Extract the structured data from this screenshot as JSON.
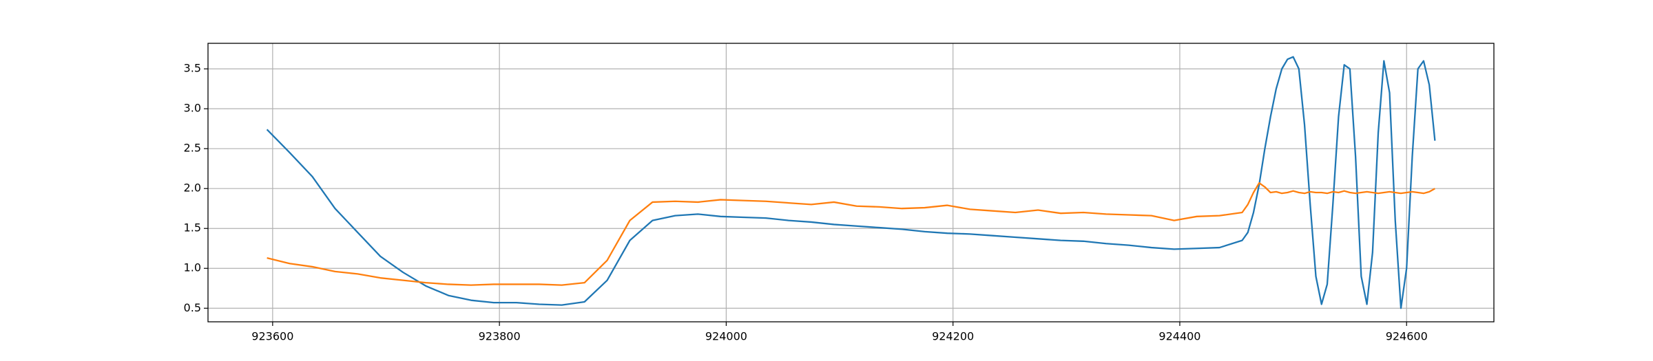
{
  "chart_data": {
    "type": "line",
    "x": [
      923595,
      923615,
      923635,
      923655,
      923675,
      923695,
      923715,
      923735,
      923755,
      923775,
      923795,
      923815,
      923835,
      923855,
      923875,
      923895,
      923915,
      923935,
      923955,
      923975,
      923995,
      924015,
      924035,
      924055,
      924075,
      924095,
      924115,
      924135,
      924155,
      924175,
      924195,
      924215,
      924235,
      924255,
      924275,
      924295,
      924315,
      924335,
      924355,
      924375,
      924395,
      924415,
      924435,
      924455,
      924460,
      924465,
      924470,
      924475,
      924480,
      924485,
      924490,
      924495,
      924500,
      924505,
      924510,
      924515,
      924520,
      924525,
      924530,
      924535,
      924540,
      924545,
      924550,
      924555,
      924560,
      924565,
      924570,
      924575,
      924580,
      924585,
      924590,
      924595,
      924600,
      924605,
      924610,
      924615,
      924620,
      924625
    ],
    "series": [
      {
        "color": "#1f77b4",
        "values": [
          2.74,
          2.45,
          2.15,
          1.75,
          1.45,
          1.15,
          0.95,
          0.78,
          0.66,
          0.6,
          0.57,
          0.57,
          0.55,
          0.54,
          0.58,
          0.85,
          1.35,
          1.6,
          1.66,
          1.68,
          1.65,
          1.64,
          1.63,
          1.6,
          1.58,
          1.55,
          1.53,
          1.51,
          1.49,
          1.46,
          1.44,
          1.43,
          1.41,
          1.39,
          1.37,
          1.35,
          1.34,
          1.31,
          1.29,
          1.26,
          1.24,
          1.25,
          1.26,
          1.35,
          1.45,
          1.7,
          2.05,
          2.5,
          2.9,
          3.25,
          3.5,
          3.62,
          3.65,
          3.5,
          2.8,
          1.8,
          0.9,
          0.55,
          0.8,
          1.8,
          2.9,
          3.55,
          3.5,
          2.4,
          0.9,
          0.55,
          1.2,
          2.7,
          3.6,
          3.2,
          1.6,
          0.5,
          1.0,
          2.4,
          3.5,
          3.6,
          3.3,
          2.6
        ]
      },
      {
        "color": "#ff7f0e",
        "values": [
          1.13,
          1.06,
          1.02,
          0.96,
          0.93,
          0.88,
          0.85,
          0.82,
          0.8,
          0.79,
          0.8,
          0.8,
          0.8,
          0.79,
          0.82,
          1.1,
          1.6,
          1.83,
          1.84,
          1.83,
          1.86,
          1.85,
          1.84,
          1.82,
          1.8,
          1.83,
          1.78,
          1.77,
          1.75,
          1.76,
          1.79,
          1.74,
          1.72,
          1.7,
          1.73,
          1.69,
          1.7,
          1.68,
          1.67,
          1.66,
          1.6,
          1.65,
          1.66,
          1.7,
          1.8,
          1.95,
          2.07,
          2.02,
          1.95,
          1.96,
          1.94,
          1.95,
          1.97,
          1.95,
          1.94,
          1.96,
          1.95,
          1.95,
          1.94,
          1.96,
          1.95,
          1.97,
          1.95,
          1.94,
          1.95,
          1.96,
          1.95,
          1.94,
          1.95,
          1.96,
          1.95,
          1.94,
          1.95,
          1.96,
          1.95,
          1.94,
          1.96,
          2.0
        ]
      }
    ],
    "xlim": [
      923543,
      924677
    ],
    "ylim": [
      0.33,
      3.82
    ],
    "xticks": [
      923600,
      923800,
      924000,
      924200,
      924400,
      924600
    ],
    "yticks": [
      0.5,
      {
        "value": 1.0,
        "label": "1.0"
      },
      1.5,
      {
        "value": 2.0,
        "label": "2.0"
      },
      2.5,
      {
        "value": 3.0,
        "label": "3.0"
      },
      3.5
    ],
    "grid": true
  }
}
